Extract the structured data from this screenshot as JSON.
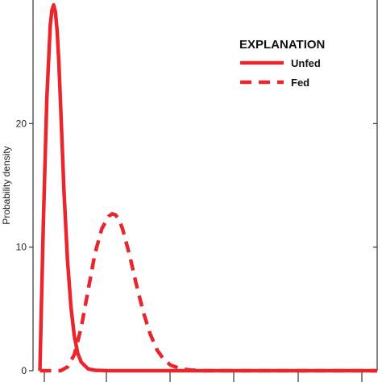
{
  "chart_data": {
    "type": "line",
    "title": "",
    "xlabel": "",
    "ylabel": "Probability density",
    "xlim": [
      0,
      1
    ],
    "ylim": [
      0,
      30
    ],
    "yticks": [
      0,
      10,
      20
    ],
    "grid": false,
    "legend": {
      "title": "EXPLANATION",
      "placement": "top-right"
    },
    "series": [
      {
        "name": "Unfed",
        "style": "solid",
        "color": "#e8262c",
        "x": [
          0.02,
          0.03,
          0.04,
          0.05,
          0.055,
          0.06,
          0.065,
          0.07,
          0.075,
          0.08,
          0.085,
          0.09,
          0.1,
          0.11,
          0.12,
          0.13,
          0.14,
          0.16,
          0.18,
          0.22,
          1.0
        ],
        "y": [
          0,
          12,
          22,
          28,
          29.2,
          29.6,
          29.0,
          27.5,
          25.0,
          21.5,
          18.0,
          14.5,
          9.0,
          5.2,
          2.8,
          1.4,
          0.7,
          0.15,
          0.03,
          0,
          0
        ]
      },
      {
        "name": "Fed",
        "style": "dashed",
        "color": "#e8262c",
        "x": [
          0.02,
          0.08,
          0.1,
          0.12,
          0.14,
          0.16,
          0.18,
          0.2,
          0.22,
          0.23,
          0.24,
          0.25,
          0.26,
          0.28,
          0.3,
          0.32,
          0.34,
          0.36,
          0.38,
          0.4,
          0.43,
          0.46,
          0.5,
          1.0
        ],
        "y": [
          0,
          0,
          0.3,
          1.3,
          3.5,
          6.5,
          9.5,
          11.5,
          12.5,
          12.7,
          12.6,
          12.2,
          11.5,
          9.4,
          7.0,
          4.8,
          3.0,
          1.7,
          0.9,
          0.45,
          0.15,
          0.05,
          0,
          0
        ]
      }
    ]
  }
}
